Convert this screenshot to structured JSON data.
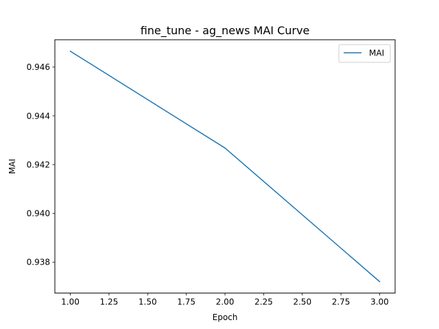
{
  "chart_data": {
    "type": "line",
    "title": "fine_tune - ag_news MAI Curve",
    "xlabel": "Epoch",
    "ylabel": "MAI",
    "x": [
      1.0,
      2.0,
      3.0
    ],
    "series": [
      {
        "name": "MAI",
        "values": [
          0.94665,
          0.94268,
          0.9372
        ],
        "color": "#1f77b4"
      }
    ],
    "xlim": [
      0.9,
      3.1
    ],
    "ylim": [
      0.93673,
      0.94712
    ],
    "xticks": [
      1.0,
      1.25,
      1.5,
      1.75,
      2.0,
      2.25,
      2.5,
      2.75,
      3.0
    ],
    "xtick_labels": [
      "1.00",
      "1.25",
      "1.50",
      "1.75",
      "2.00",
      "2.25",
      "2.50",
      "2.75",
      "3.00"
    ],
    "yticks": [
      0.938,
      0.94,
      0.942,
      0.944,
      0.946
    ],
    "ytick_labels": [
      "0.938",
      "0.940",
      "0.942",
      "0.944",
      "0.946"
    ],
    "grid": false,
    "legend": "upper right"
  }
}
